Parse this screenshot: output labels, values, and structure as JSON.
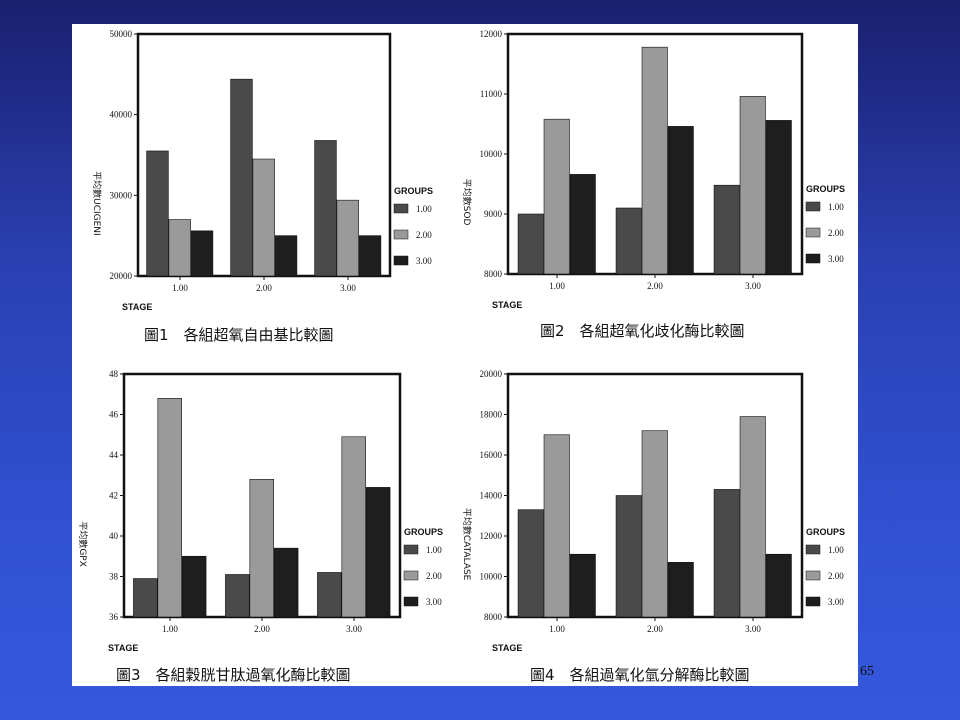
{
  "page_number": "65",
  "colors": {
    "group1": "#4a4a4a",
    "group2": "#9a9a9a",
    "group3": "#1e1e1e"
  },
  "chart_data": [
    {
      "type": "bar",
      "caption": "圖1　各組超氧自由基比較圖",
      "xlabel": "STAGE",
      "ylabel": "平均數UCIGENI",
      "ylim": [
        20000,
        50000
      ],
      "yticks": [
        "20000",
        "30000",
        "40000",
        "50000"
      ],
      "categories": [
        "1.00",
        "2.00",
        "3.00"
      ],
      "legend_title": "GROUPS",
      "legend_position": "right",
      "series": [
        {
          "name": "1.00",
          "values": [
            35500,
            44400,
            36800
          ]
        },
        {
          "name": "2.00",
          "values": [
            27000,
            34500,
            29400
          ]
        },
        {
          "name": "3.00",
          "values": [
            25600,
            25000,
            25000
          ]
        }
      ]
    },
    {
      "type": "bar",
      "caption": "圖2　各組超氧化歧化酶比較圖",
      "xlabel": "STAGE",
      "ylabel": "平均數SOD",
      "ylim": [
        8000,
        12000
      ],
      "yticks": [
        "8000",
        "9000",
        "10000",
        "11000",
        "12000"
      ],
      "categories": [
        "1.00",
        "2.00",
        "3.00"
      ],
      "legend_title": "GROUPS",
      "legend_position": "right",
      "series": [
        {
          "name": "1.00",
          "values": [
            9000,
            9100,
            9480
          ]
        },
        {
          "name": "2.00",
          "values": [
            10580,
            11780,
            10960
          ]
        },
        {
          "name": "3.00",
          "values": [
            9660,
            10460,
            10560
          ]
        }
      ]
    },
    {
      "type": "bar",
      "caption": "圖3　各組穀胱甘肽過氧化酶比較圖",
      "xlabel": "STAGE",
      "ylabel": "平均數GPX",
      "ylim": [
        36,
        48
      ],
      "yticks": [
        "36",
        "38",
        "40",
        "42",
        "44",
        "46",
        "48"
      ],
      "categories": [
        "1.00",
        "2.00",
        "3.00"
      ],
      "legend_title": "GROUPS",
      "legend_position": "right",
      "series": [
        {
          "name": "1.00",
          "values": [
            37.9,
            38.1,
            38.2
          ]
        },
        {
          "name": "2.00",
          "values": [
            46.8,
            42.8,
            44.9
          ]
        },
        {
          "name": "3.00",
          "values": [
            39.0,
            39.4,
            42.4
          ]
        }
      ]
    },
    {
      "type": "bar",
      "caption": "圖4　各組過氧化氫分解酶比較圖",
      "xlabel": "STAGE",
      "ylabel": "平均數CATALASE",
      "ylim": [
        8000,
        20000
      ],
      "yticks": [
        "8000",
        "10000",
        "12000",
        "14000",
        "16000",
        "18000",
        "20000"
      ],
      "categories": [
        "1.00",
        "2.00",
        "3.00"
      ],
      "legend_title": "GROUPS",
      "legend_position": "right",
      "series": [
        {
          "name": "1.00",
          "values": [
            13300,
            14000,
            14300
          ]
        },
        {
          "name": "2.00",
          "values": [
            17000,
            17200,
            17900
          ]
        },
        {
          "name": "3.00",
          "values": [
            11100,
            10700,
            11100
          ]
        }
      ]
    }
  ]
}
